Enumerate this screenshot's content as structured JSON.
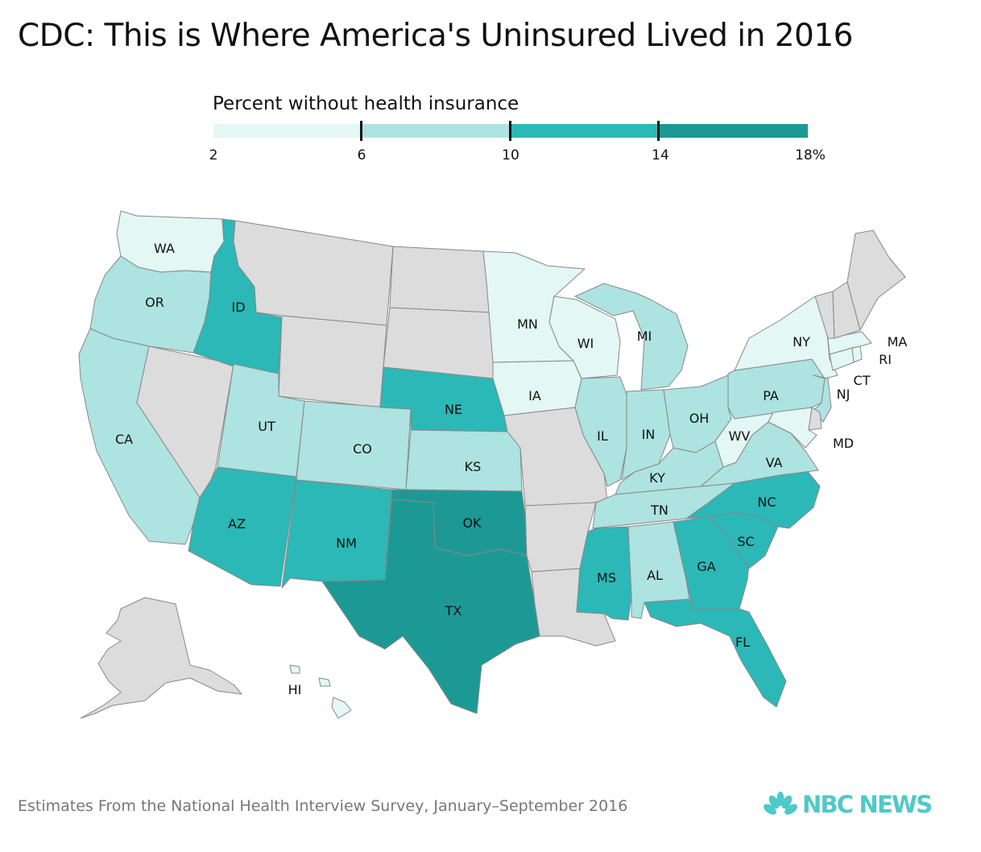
{
  "title": "CDC: This is Where America's Uninsured Lived in 2016",
  "legend": {
    "title": "Percent without health insurance",
    "breaks": [
      2,
      6,
      10,
      14,
      18
    ],
    "labels": [
      "2",
      "6",
      "10",
      "14",
      "18%"
    ],
    "colors": [
      "#e3f7f4",
      "#ade3e0",
      "#2bb8b7",
      "#1d9995"
    ]
  },
  "no_data_color": "#dcdcdc",
  "map": {
    "states": [
      {
        "code": "WA",
        "label": "WA",
        "bin": 0
      },
      {
        "code": "OR",
        "label": "OR",
        "bin": 1
      },
      {
        "code": "CA",
        "label": "CA",
        "bin": 1
      },
      {
        "code": "NV",
        "label": "",
        "bin": null
      },
      {
        "code": "ID",
        "label": "ID",
        "bin": 2
      },
      {
        "code": "MT",
        "label": "",
        "bin": null
      },
      {
        "code": "WY",
        "label": "",
        "bin": null
      },
      {
        "code": "UT",
        "label": "UT",
        "bin": 1
      },
      {
        "code": "AZ",
        "label": "AZ",
        "bin": 2
      },
      {
        "code": "CO",
        "label": "CO",
        "bin": 1
      },
      {
        "code": "NM",
        "label": "NM",
        "bin": 2
      },
      {
        "code": "ND",
        "label": "",
        "bin": null
      },
      {
        "code": "SD",
        "label": "",
        "bin": null
      },
      {
        "code": "NE",
        "label": "NE",
        "bin": 2
      },
      {
        "code": "KS",
        "label": "KS",
        "bin": 1
      },
      {
        "code": "OK",
        "label": "OK",
        "bin": 3
      },
      {
        "code": "TX",
        "label": "TX",
        "bin": 3
      },
      {
        "code": "MN",
        "label": "MN",
        "bin": 0
      },
      {
        "code": "IA",
        "label": "IA",
        "bin": 0
      },
      {
        "code": "MO",
        "label": "",
        "bin": null
      },
      {
        "code": "AR",
        "label": "",
        "bin": null
      },
      {
        "code": "LA",
        "label": "",
        "bin": null
      },
      {
        "code": "WI",
        "label": "WI",
        "bin": 0
      },
      {
        "code": "IL",
        "label": "IL",
        "bin": 1
      },
      {
        "code": "MI",
        "label": "MI",
        "bin": 1
      },
      {
        "code": "IN",
        "label": "IN",
        "bin": 1
      },
      {
        "code": "OH",
        "label": "OH",
        "bin": 1
      },
      {
        "code": "KY",
        "label": "KY",
        "bin": 1
      },
      {
        "code": "TN",
        "label": "TN",
        "bin": 1
      },
      {
        "code": "MS",
        "label": "MS",
        "bin": 2
      },
      {
        "code": "AL",
        "label": "AL",
        "bin": 1
      },
      {
        "code": "GA",
        "label": "GA",
        "bin": 2
      },
      {
        "code": "FL",
        "label": "FL",
        "bin": 2
      },
      {
        "code": "SC",
        "label": "SC",
        "bin": 2
      },
      {
        "code": "NC",
        "label": "NC",
        "bin": 2
      },
      {
        "code": "VA",
        "label": "VA",
        "bin": 1
      },
      {
        "code": "WV",
        "label": "WV",
        "bin": 0
      },
      {
        "code": "PA",
        "label": "PA",
        "bin": 1
      },
      {
        "code": "NY",
        "label": "NY",
        "bin": 0
      },
      {
        "code": "NJ",
        "label": "NJ",
        "bin": 1
      },
      {
        "code": "MD",
        "label": "MD",
        "bin": 0
      },
      {
        "code": "DE",
        "label": "",
        "bin": null
      },
      {
        "code": "CT",
        "label": "CT",
        "bin": 0
      },
      {
        "code": "RI",
        "label": "RI",
        "bin": 0
      },
      {
        "code": "MA",
        "label": "MA",
        "bin": 0
      },
      {
        "code": "VT",
        "label": "",
        "bin": null
      },
      {
        "code": "NH",
        "label": "",
        "bin": null
      },
      {
        "code": "ME",
        "label": "",
        "bin": null
      },
      {
        "code": "AK",
        "label": "",
        "bin": null
      },
      {
        "code": "HI",
        "label": "HI",
        "bin": 0
      }
    ]
  },
  "footer": {
    "source": "Estimates From the National Health Interview Survey, January–September 2016",
    "logo_text": "NBC NEWS"
  }
}
